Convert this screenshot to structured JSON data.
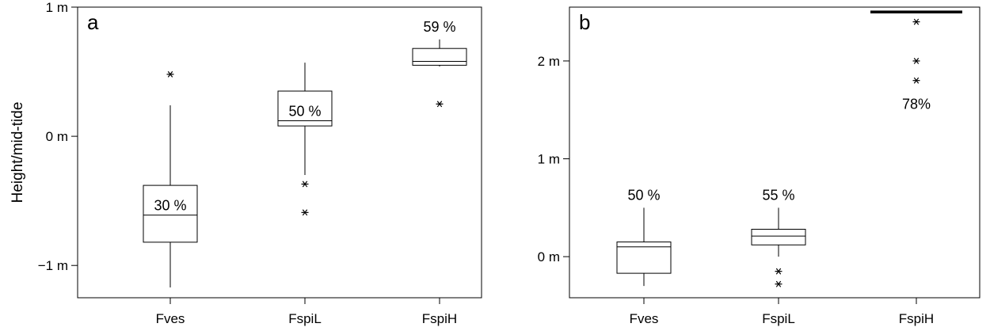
{
  "chart_data": [
    {
      "type": "box",
      "panel_label": "a",
      "ylabel": "Height/mid-tide",
      "ylim": [
        -1.25,
        1.0
      ],
      "yticks": [
        {
          "value": 1,
          "label": "1 m"
        },
        {
          "value": 0,
          "label": "0 m"
        },
        {
          "value": -1,
          "label": "−1 m"
        }
      ],
      "categories": [
        "Fves",
        "FspiL",
        "FspiH"
      ],
      "boxes": [
        {
          "category": "Fves",
          "whisker_low": -1.17,
          "q1": -0.82,
          "median": -0.61,
          "q3": -0.38,
          "whisker_high": 0.24,
          "outliers": [
            0.48
          ],
          "annotation": "30 %"
        },
        {
          "category": "FspiL",
          "whisker_low": -0.3,
          "q1": 0.08,
          "median": 0.12,
          "q3": 0.35,
          "whisker_high": 0.57,
          "outliers": [
            -0.37,
            -0.59
          ],
          "annotation": "50 %"
        },
        {
          "category": "FspiH",
          "whisker_low": 0.54,
          "q1": 0.55,
          "median": 0.58,
          "q3": 0.68,
          "whisker_high": 0.75,
          "outliers": [
            0.25
          ],
          "annotation": "59 %"
        }
      ]
    },
    {
      "type": "box",
      "panel_label": "b",
      "ylabel": "",
      "ylim": [
        -0.42,
        2.55
      ],
      "yticks": [
        {
          "value": 2,
          "label": "2 m"
        },
        {
          "value": 1,
          "label": "1 m"
        },
        {
          "value": 0,
          "label": "0 m"
        }
      ],
      "categories": [
        "Fves",
        "FspiL",
        "FspiH"
      ],
      "boxes": [
        {
          "category": "Fves",
          "whisker_low": -0.3,
          "q1": -0.17,
          "median": 0.1,
          "q3": 0.15,
          "whisker_high": 0.5,
          "outliers": [],
          "annotation": "50 %"
        },
        {
          "category": "FspiL",
          "whisker_low": 0.0,
          "q1": 0.12,
          "median": 0.21,
          "q3": 0.28,
          "whisker_high": 0.5,
          "outliers": [
            -0.15,
            -0.28
          ],
          "annotation": "55 %"
        },
        {
          "category": "FspiH",
          "whisker_low": 2.5,
          "q1": 2.5,
          "median": 2.5,
          "q3": 2.5,
          "whisker_high": 2.5,
          "outliers": [
            2.4,
            2.0,
            1.8
          ],
          "annotation": "78%"
        }
      ]
    }
  ]
}
